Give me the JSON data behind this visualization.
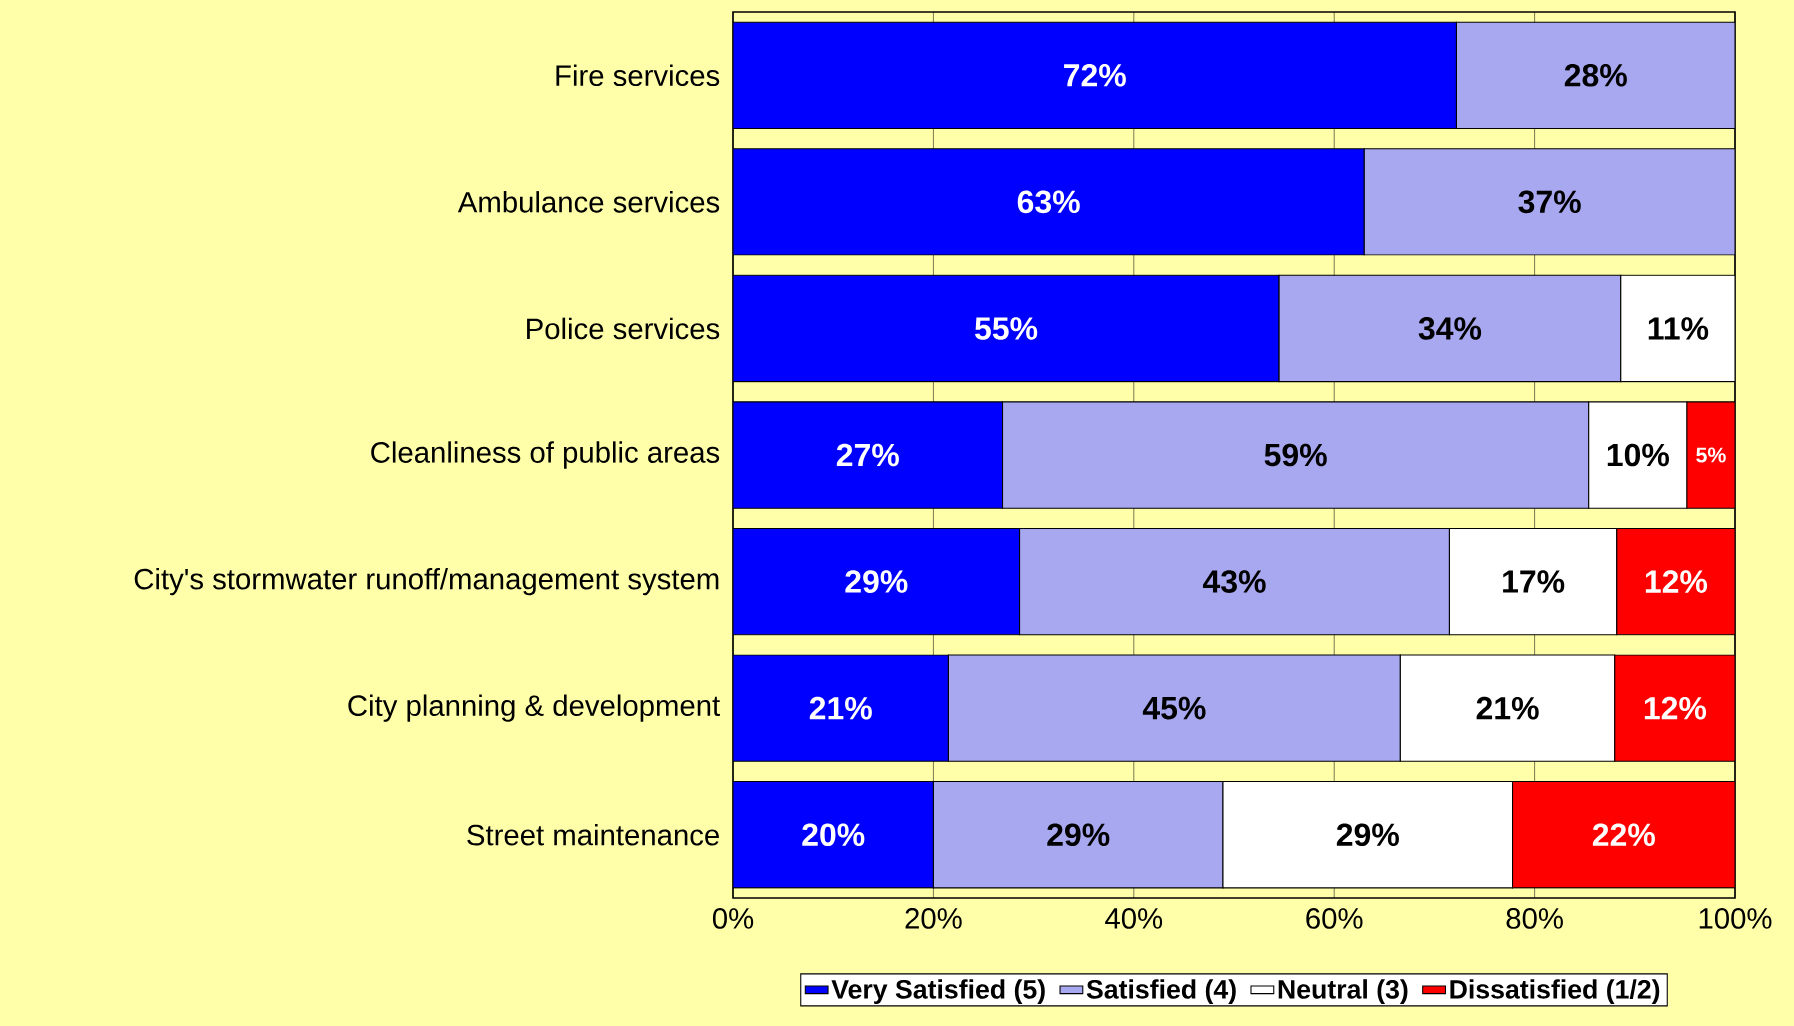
{
  "chart_data": {
    "type": "bar",
    "orientation": "horizontal",
    "stacked": true,
    "categories": [
      "Fire services",
      "Ambulance services",
      "Police services",
      "Cleanliness of public areas",
      "City's stormwater runoff/management system",
      "City planning & development",
      "Street maintenance"
    ],
    "series": [
      {
        "name": "Very Satisfied (5)",
        "color": "#0000ff",
        "values": [
          72.2,
          63.0,
          54.5,
          26.9,
          28.6,
          21.5,
          20.0
        ],
        "value_labels": [
          "72%",
          "63%",
          "55%",
          "27%",
          "29%",
          "21%",
          "20%"
        ]
      },
      {
        "name": "Satisfied (4)",
        "color": "#a8a8f0",
        "values": [
          27.8,
          37.0,
          34.1,
          58.5,
          42.9,
          45.1,
          28.9
        ],
        "value_labels": [
          "28%",
          "37%",
          "34%",
          "59%",
          "43%",
          "45%",
          "29%"
        ]
      },
      {
        "name": "Neutral (3)",
        "color": "#ffffff",
        "values": [
          null,
          null,
          11.4,
          9.8,
          16.7,
          21.4,
          28.9
        ],
        "value_labels": [
          null,
          null,
          "11%",
          "10%",
          "17%",
          "21%",
          "29%"
        ]
      },
      {
        "name": "Dissatisfied (1/2)",
        "color": "#ff0000",
        "values": [
          null,
          null,
          null,
          4.8,
          11.8,
          12.0,
          22.2
        ],
        "value_labels": [
          null,
          null,
          null,
          "5%",
          "12%",
          "12%",
          "22%"
        ]
      }
    ],
    "xlim": [
      0,
      100
    ],
    "xticks": [
      {
        "value": 0,
        "label": "0%"
      },
      {
        "value": 20,
        "label": "20%"
      },
      {
        "value": 40,
        "label": "40%"
      },
      {
        "value": 60,
        "label": "60%"
      },
      {
        "value": 80,
        "label": "80%"
      },
      {
        "value": 100,
        "label": "100%"
      }
    ],
    "grid": "x",
    "legend": "bottom"
  }
}
